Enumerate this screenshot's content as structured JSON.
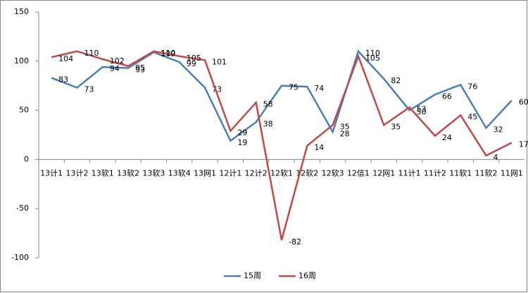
{
  "chart_data": {
    "type": "line",
    "categories": [
      "13计1",
      "13计2",
      "13软1",
      "13软2",
      "13软3",
      "13软4",
      "13网1",
      "12计1",
      "12计2",
      "12软1",
      "12软2",
      "12软3",
      "12信1",
      "12网1",
      "11计1",
      "11计2",
      "11软1",
      "11软2",
      "11网1"
    ],
    "series": [
      {
        "name": "15周",
        "color": "#4a7ebb",
        "values": [
          83,
          73,
          94,
          93,
          109,
          99,
          73,
          19,
          38,
          75,
          74,
          28,
          110,
          82,
          50,
          66,
          76,
          32,
          60
        ]
      },
      {
        "name": "16周",
        "color": "#be4b48",
        "values": [
          104,
          110,
          102,
          95,
          110,
          105,
          101,
          29,
          58,
          -82,
          14,
          35,
          105,
          35,
          53,
          24,
          45,
          4,
          17
        ]
      }
    ],
    "ylim": [
      -100,
      150
    ],
    "yticks": [
      -100,
      -50,
      0,
      50,
      100,
      150
    ],
    "grid": false,
    "legend": "bottom"
  }
}
